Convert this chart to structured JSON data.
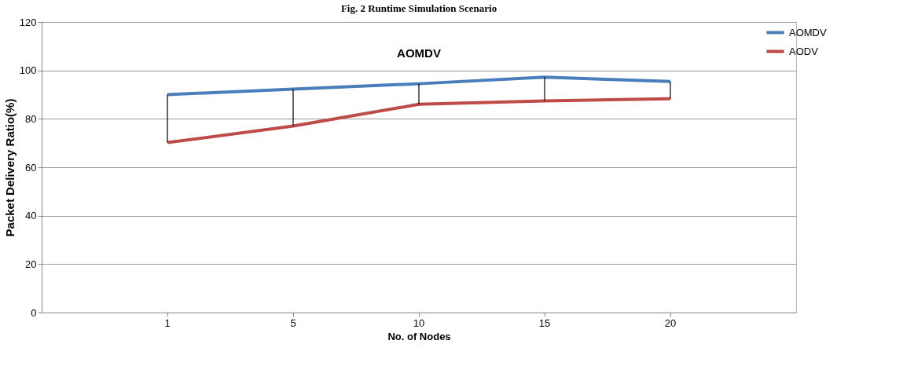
{
  "chart_data": {
    "type": "line",
    "title": "AOMDV",
    "xlabel": "No. of Nodes",
    "ylabel": "Packet Delivery Ratio(%)",
    "annotations": [
      "Fig. 2 Runtime Simulation Scenario"
    ],
    "categories": [
      "1",
      "5",
      "10",
      "15",
      "20"
    ],
    "series": [
      {
        "name": "AOMDV",
        "color": "#4a7ebb",
        "values": [
          90,
          92.3,
          94.5,
          97.2,
          95.4
        ]
      },
      {
        "name": "AODV",
        "color": "#be4b48",
        "values": [
          70.2,
          77,
          86,
          87.4,
          88.3
        ],
        "errors": [
          [
            70.2,
            90
          ],
          [
            77,
            92.3
          ],
          [
            86,
            94.5
          ],
          [
            87.4,
            97.2
          ],
          [
            88.3,
            95.4
          ]
        ]
      }
    ],
    "ylim": [
      0,
      120
    ],
    "yticks": [
      0,
      20,
      40,
      60,
      80,
      100,
      120
    ],
    "grid": "y",
    "legend": "right",
    "marker": "none",
    "line_style": "solid"
  }
}
